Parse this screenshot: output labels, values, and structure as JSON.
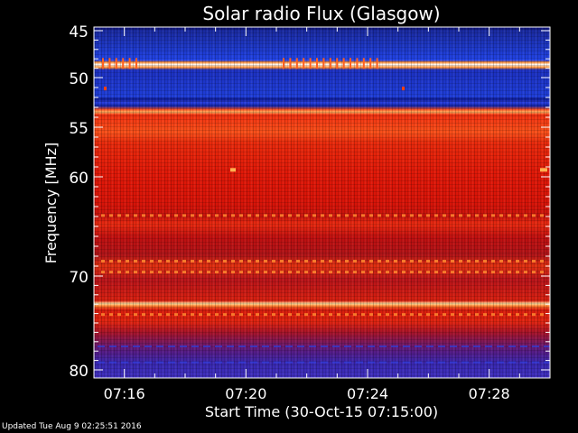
{
  "chart_data": {
    "type": "heatmap",
    "title": "Solar radio Flux (Glasgow)",
    "xlabel": "Start Time (30-Oct-15 07:15:00)",
    "ylabel": "Frequency [MHz]",
    "x_range": [
      "07:15:00",
      "07:30:00"
    ],
    "x_ticks": [
      "07:16",
      "07:20",
      "07:24",
      "07:28"
    ],
    "y_range_mhz": [
      45,
      80
    ],
    "y_ticks": [
      45,
      50,
      55,
      60,
      70,
      80
    ],
    "y_tick_labels": [
      "45",
      "50",
      "55",
      "60",
      "70",
      "80"
    ],
    "y_axis_orientation": "increasing-downward",
    "colormap": "black-blue-red-yellow-white",
    "colors": {
      "background": "#000000",
      "low": "#1030d0",
      "mid": "#e01808",
      "high": "#ffffff"
    },
    "intensity_bands": [
      {
        "from_mhz": 45.0,
        "to_mhz": 48.5,
        "level": "low"
      },
      {
        "from_mhz": 48.5,
        "to_mhz": 49.0,
        "level": "very-high"
      },
      {
        "from_mhz": 49.0,
        "to_mhz": 52.5,
        "level": "low"
      },
      {
        "from_mhz": 52.5,
        "to_mhz": 53.0,
        "level": "high"
      },
      {
        "from_mhz": 53.0,
        "to_mhz": 64.0,
        "level": "mid"
      },
      {
        "from_mhz": 64.0,
        "to_mhz": 72.0,
        "level": "mid-mixed"
      },
      {
        "from_mhz": 72.0,
        "to_mhz": 72.5,
        "level": "very-high"
      },
      {
        "from_mhz": 72.5,
        "to_mhz": 76.0,
        "level": "mid"
      },
      {
        "from_mhz": 76.0,
        "to_mhz": 80.0,
        "level": "low-mixed"
      }
    ]
  },
  "footer": {
    "updated": "Updated Tue Aug  9 02:25:51 2016"
  }
}
